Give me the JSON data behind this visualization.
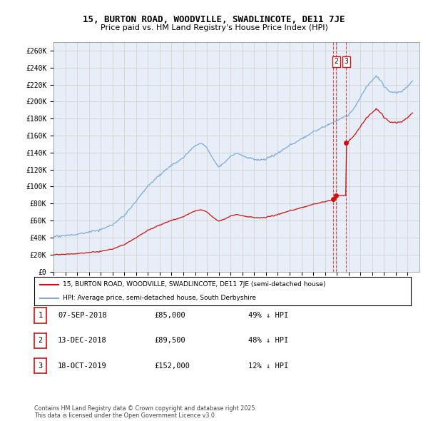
{
  "title_line1": "15, BURTON ROAD, WOODVILLE, SWADLINCOTE, DE11 7JE",
  "title_line2": "Price paid vs. HM Land Registry's House Price Index (HPI)",
  "ylim": [
    0,
    270000
  ],
  "xlim_start": 1995.0,
  "xlim_end": 2026.0,
  "hpi_color": "#7aaadd",
  "price_color": "#cc1111",
  "grid_color": "#cccccc",
  "background_color": "#e8eef8",
  "transactions": [
    {
      "date_num": 2018.68,
      "price": 85000,
      "label": "1"
    },
    {
      "date_num": 2018.95,
      "price": 89500,
      "label": "2"
    },
    {
      "date_num": 2019.79,
      "price": 152000,
      "label": "3"
    }
  ],
  "transaction_table": [
    {
      "num": "1",
      "date": "07-SEP-2018",
      "price": "£85,000",
      "pct": "49% ↓ HPI"
    },
    {
      "num": "2",
      "date": "13-DEC-2018",
      "price": "£89,500",
      "pct": "48% ↓ HPI"
    },
    {
      "num": "3",
      "date": "18-OCT-2019",
      "price": "£152,000",
      "pct": "12% ↓ HPI"
    }
  ],
  "legend_line1": "15, BURTON ROAD, WOODVILLE, SWADLINCOTE, DE11 7JE (semi-detached house)",
  "legend_line2": "HPI: Average price, semi-detached house, South Derbyshire",
  "footer": "Contains HM Land Registry data © Crown copyright and database right 2025.\nThis data is licensed under the Open Government Licence v3.0.",
  "yticks": [
    0,
    20000,
    40000,
    60000,
    80000,
    100000,
    120000,
    140000,
    160000,
    180000,
    200000,
    220000,
    240000,
    260000
  ],
  "ytick_labels": [
    "£0",
    "£20K",
    "£40K",
    "£60K",
    "£80K",
    "£100K",
    "£120K",
    "£140K",
    "£160K",
    "£180K",
    "£200K",
    "£220K",
    "£240K",
    "£260K"
  ]
}
